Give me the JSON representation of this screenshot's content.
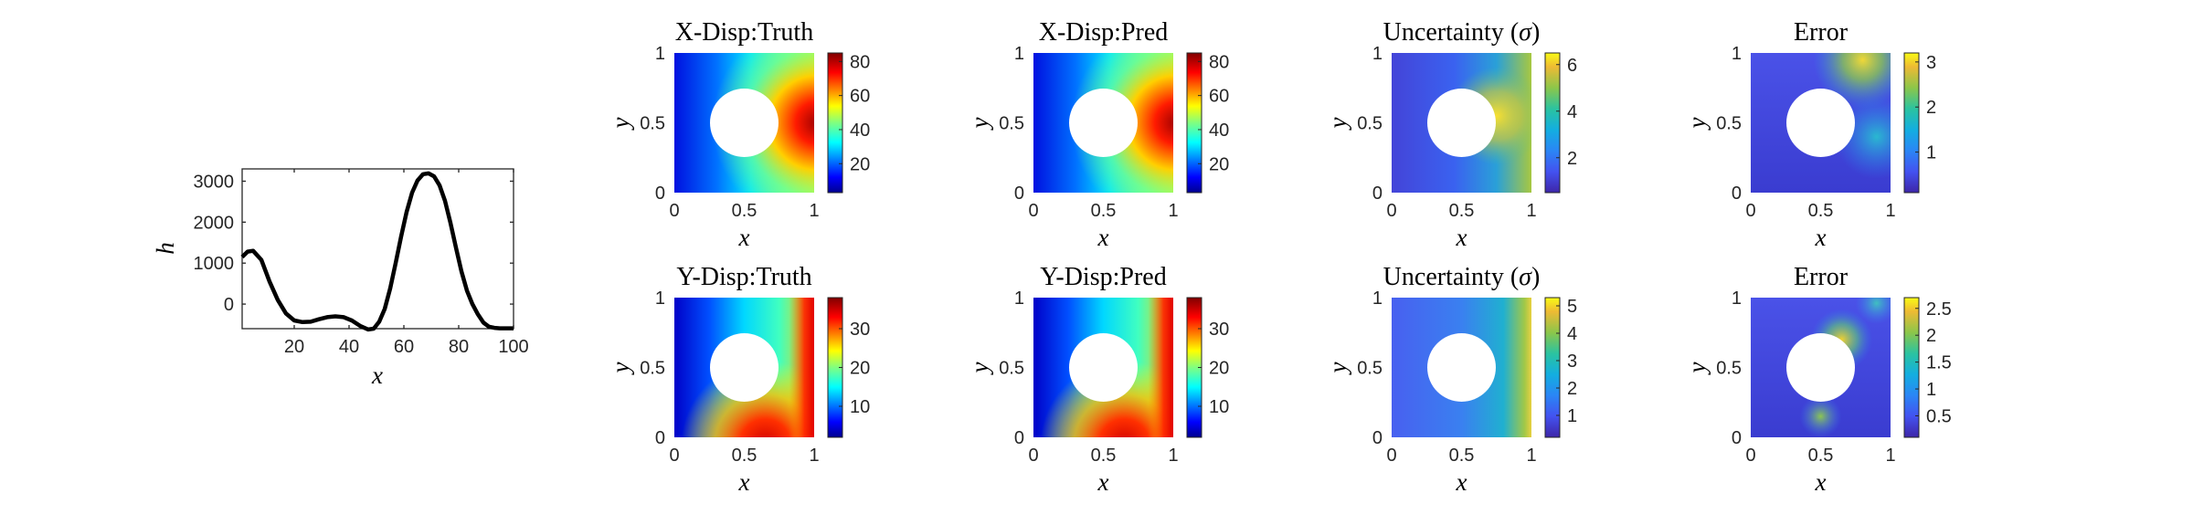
{
  "chart_data": [
    {
      "type": "line",
      "xlabel": "x",
      "ylabel": "h",
      "xlim": [
        1,
        100
      ],
      "ylim": [
        -600,
        3300
      ],
      "xticks": [
        20,
        40,
        60,
        80,
        100
      ],
      "yticks": [
        0,
        1000,
        2000,
        3000
      ],
      "grid": false,
      "series": [
        {
          "x": [
            1,
            3,
            5,
            8,
            11,
            14,
            17,
            20,
            23,
            26,
            29,
            32,
            35,
            38,
            41,
            44,
            47,
            49,
            51,
            53,
            55,
            57,
            59,
            61,
            63,
            65,
            67,
            69,
            71,
            73,
            75,
            77,
            79,
            81,
            83,
            85,
            87,
            89,
            91,
            93,
            95,
            97,
            100
          ],
          "values": [
            1150,
            1280,
            1300,
            1080,
            550,
            100,
            -230,
            -400,
            -440,
            -430,
            -370,
            -320,
            -300,
            -320,
            -400,
            -530,
            -620,
            -600,
            -430,
            -120,
            380,
            1000,
            1650,
            2250,
            2720,
            3020,
            3170,
            3190,
            3120,
            2900,
            2520,
            1980,
            1380,
            800,
            330,
            0,
            -250,
            -450,
            -550,
            -580,
            -590,
            -590,
            -590
          ]
        }
      ]
    },
    {
      "type": "heatmap",
      "title": "X-Disp:Truth",
      "xlabel": "x",
      "ylabel": "y",
      "xlim": [
        0,
        1
      ],
      "ylim": [
        0,
        1
      ],
      "xticks": [
        "0",
        "0.5",
        "1"
      ],
      "yticks": [
        "0",
        "0.5",
        "1"
      ],
      "colormap": "jet",
      "clim": [
        3,
        85
      ],
      "colorbar_ticks": [
        "20",
        "40",
        "60",
        "80"
      ]
    },
    {
      "type": "heatmap",
      "title": "X-Disp:Pred",
      "xlabel": "x",
      "ylabel": "y",
      "xlim": [
        0,
        1
      ],
      "ylim": [
        0,
        1
      ],
      "xticks": [
        "0",
        "0.5",
        "1"
      ],
      "yticks": [
        "0",
        "0.5",
        "1"
      ],
      "colormap": "jet",
      "clim": [
        3,
        85
      ],
      "colorbar_ticks": [
        "20",
        "40",
        "60",
        "80"
      ]
    },
    {
      "type": "heatmap",
      "title_prefix": "Uncertainty (",
      "title_symbol": "σ",
      "title_suffix": ")",
      "xlabel": "x",
      "ylabel": "y",
      "xlim": [
        0,
        1
      ],
      "ylim": [
        0,
        1
      ],
      "xticks": [
        "0",
        "0.5",
        "1"
      ],
      "yticks": [
        "0",
        "0.5",
        "1"
      ],
      "colormap": "parula",
      "clim": [
        0.5,
        6.5
      ],
      "colorbar_ticks": [
        "2",
        "4",
        "6"
      ]
    },
    {
      "type": "heatmap",
      "title": "Error",
      "xlabel": "x",
      "ylabel": "y",
      "xlim": [
        0,
        1
      ],
      "ylim": [
        0,
        1
      ],
      "xticks": [
        "0",
        "0.5",
        "1"
      ],
      "yticks": [
        "0",
        "0.5",
        "1"
      ],
      "colormap": "parula",
      "clim": [
        0.1,
        3.2
      ],
      "colorbar_ticks": [
        "1",
        "2",
        "3"
      ]
    },
    {
      "type": "heatmap",
      "title": "Y-Disp:Truth",
      "xlabel": "x",
      "ylabel": "y",
      "xlim": [
        0,
        1
      ],
      "ylim": [
        0,
        1
      ],
      "xticks": [
        "0",
        "0.5",
        "1"
      ],
      "yticks": [
        "0",
        "0.5",
        "1"
      ],
      "colormap": "jet",
      "clim": [
        2,
        38
      ],
      "colorbar_ticks": [
        "10",
        "20",
        "30"
      ]
    },
    {
      "type": "heatmap",
      "title": "Y-Disp:Pred",
      "xlabel": "x",
      "ylabel": "y",
      "xlim": [
        0,
        1
      ],
      "ylim": [
        0,
        1
      ],
      "xticks": [
        "0",
        "0.5",
        "1"
      ],
      "yticks": [
        "0",
        "0.5",
        "1"
      ],
      "colormap": "jet",
      "clim": [
        2,
        38
      ],
      "colorbar_ticks": [
        "10",
        "20",
        "30"
      ]
    },
    {
      "type": "heatmap",
      "title_prefix": "Uncertainty (",
      "title_symbol": "σ",
      "title_suffix": ")",
      "xlabel": "x",
      "ylabel": "y",
      "xlim": [
        0,
        1
      ],
      "ylim": [
        0,
        1
      ],
      "xticks": [
        "0",
        "0.5",
        "1"
      ],
      "yticks": [
        "0",
        "0.5",
        "1"
      ],
      "colormap": "parula",
      "clim": [
        0.2,
        5.3
      ],
      "colorbar_ticks": [
        "1",
        "2",
        "3",
        "4",
        "5"
      ]
    },
    {
      "type": "heatmap",
      "title": "Error",
      "xlabel": "x",
      "ylabel": "y",
      "xlim": [
        0,
        1
      ],
      "ylim": [
        0,
        1
      ],
      "xticks": [
        "0",
        "0.5",
        "1"
      ],
      "yticks": [
        "0",
        "0.5",
        "1"
      ],
      "colormap": "parula",
      "clim": [
        0.1,
        2.7
      ],
      "colorbar_ticks": [
        "0.5",
        "1",
        "1.5",
        "2",
        "2.5"
      ]
    }
  ]
}
